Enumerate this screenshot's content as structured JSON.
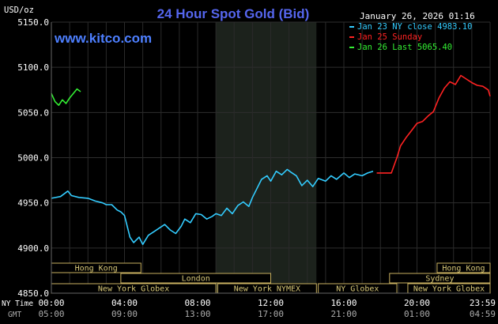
{
  "chart_data": {
    "type": "line",
    "title": "24 Hour Spot Gold (Bid)",
    "site": "www.kitco.com",
    "unit_label": "USD/oz",
    "timestamp": "January 26, 2026 01:16",
    "ylim": [
      4850,
      5150
    ],
    "y_ticks": [
      {
        "value": 5150,
        "label": "5150.0"
      },
      {
        "value": 5100,
        "label": "5100.0"
      },
      {
        "value": 5050,
        "label": "5050.0"
      },
      {
        "value": 5000,
        "label": "5000.0"
      },
      {
        "value": 4950,
        "label": "4950.0"
      },
      {
        "value": 4900,
        "label": "4900.0"
      },
      {
        "value": 4850,
        "label": "4850.0"
      }
    ],
    "x_row_labels": {
      "ny": "NY Time",
      "gmt": "GMT"
    },
    "x_ticks": [
      {
        "hour": 0,
        "ny": "00:00",
        "gmt": "05:00"
      },
      {
        "hour": 4,
        "ny": "04:00",
        "gmt": "09:00"
      },
      {
        "hour": 8,
        "ny": "08:00",
        "gmt": "13:00"
      },
      {
        "hour": 12,
        "ny": "12:00",
        "gmt": "17:00"
      },
      {
        "hour": 16,
        "ny": "16:00",
        "gmt": "21:00"
      },
      {
        "hour": 20,
        "ny": "20:00",
        "gmt": "01:00"
      },
      {
        "hour": 24,
        "ny": "23:59",
        "gmt": "04:59"
      }
    ],
    "shaded_session": {
      "start_hour": 9,
      "end_hour": 14.5
    },
    "legend": [
      {
        "text": "Jan 23 NY close 4983.10",
        "color": "#33ccff"
      },
      {
        "text": "Jan 25 Sunday",
        "color": "#ff2222"
      },
      {
        "text": "Jan 26 Last 5065.40",
        "color": "#33ee33"
      }
    ],
    "market_sessions": [
      {
        "name": "Hong Kong",
        "row": 0,
        "start_hour": 0,
        "end_hour": 4.9
      },
      {
        "name": "London",
        "row": 1,
        "start_hour": 3.8,
        "end_hour": 12
      },
      {
        "name": "New York Globex",
        "row": 2,
        "start_hour": 0,
        "end_hour": 9
      },
      {
        "name": "New York NYMEX",
        "row": 2,
        "start_hour": 9.1,
        "end_hour": 14.5
      },
      {
        "name": "NY Globex",
        "row": 2,
        "start_hour": 14.6,
        "end_hour": 18.9
      },
      {
        "name": "Hong Kong",
        "row": 0,
        "start_hour": 21.1,
        "end_hour": 24
      },
      {
        "name": "Sydney",
        "row": 1,
        "start_hour": 18.5,
        "end_hour": 24
      },
      {
        "name": "New York Globex",
        "row": 2,
        "start_hour": 19.5,
        "end_hour": 24
      }
    ],
    "series": [
      {
        "name": "Jan 23 NY close 4983.10",
        "color": "#33ccff",
        "x": [
          0,
          0.5,
          0.9,
          1.1,
          1.5,
          2,
          2.4,
          2.8,
          3,
          3.3,
          3.6,
          3.8,
          4,
          4.3,
          4.5,
          4.8,
          5,
          5.3,
          5.6,
          5.9,
          6.2,
          6.5,
          6.8,
          7.1,
          7.3,
          7.6,
          7.9,
          8.2,
          8.5,
          8.8,
          9,
          9.3,
          9.6,
          9.9,
          10.2,
          10.5,
          10.8,
          11,
          11.2,
          11.5,
          11.8,
          12,
          12.3,
          12.6,
          12.9,
          13.1,
          13.4,
          13.7,
          14,
          14.3,
          14.6,
          15,
          15.3,
          15.6,
          16,
          16.3,
          16.6,
          17,
          17.3,
          17.6
        ],
        "values": [
          4955,
          4957,
          4963,
          4958,
          4956,
          4955,
          4952,
          4950,
          4948,
          4948,
          4942,
          4940,
          4936,
          4912,
          4906,
          4912,
          4904,
          4914,
          4918,
          4922,
          4926,
          4920,
          4916,
          4924,
          4932,
          4928,
          4938,
          4937,
          4932,
          4935,
          4938,
          4936,
          4944,
          4938,
          4947,
          4951,
          4946,
          4956,
          4964,
          4976,
          4980,
          4974,
          4985,
          4981,
          4987,
          4984,
          4980,
          4969,
          4975,
          4968,
          4977,
          4974,
          4980,
          4976,
          4983,
          4978,
          4982,
          4980,
          4983,
          4985
        ]
      },
      {
        "name": "Jan 25 Sunday",
        "color": "#ff2222",
        "x": [
          17.8,
          18.6,
          18.9,
          19.1,
          19.4,
          19.7,
          20,
          20.3,
          20.6,
          20.9,
          21.2,
          21.5,
          21.8,
          22.1,
          22.4,
          22.7,
          23,
          23.3,
          23.6,
          23.9,
          24
        ],
        "values": [
          4983,
          4983,
          5000,
          5013,
          5022,
          5030,
          5038,
          5040,
          5046,
          5051,
          5066,
          5077,
          5084,
          5081,
          5091,
          5087,
          5083,
          5080,
          5079,
          5075,
          5068
        ]
      },
      {
        "name": "Jan 26 Last 5065.40",
        "color": "#33ee33",
        "x": [
          0,
          0.2,
          0.4,
          0.6,
          0.8,
          1,
          1.2,
          1.4,
          1.6
        ],
        "values": [
          5071,
          5062,
          5058,
          5064,
          5060,
          5066,
          5071,
          5076,
          5073
        ]
      }
    ]
  }
}
